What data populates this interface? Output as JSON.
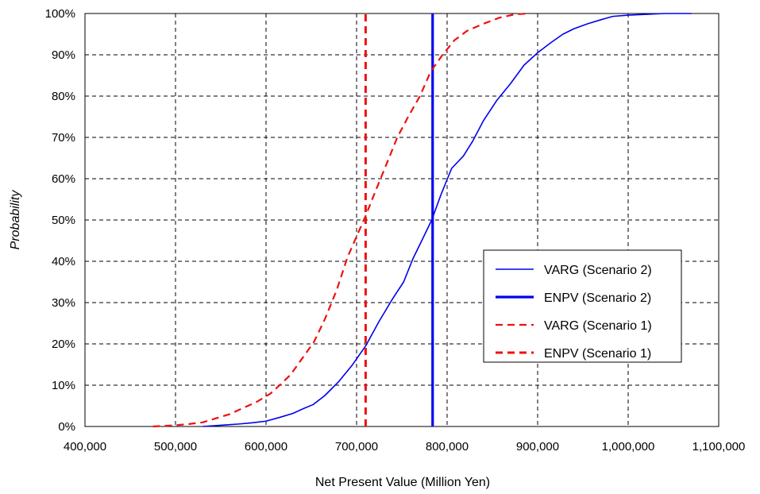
{
  "chart_data": {
    "type": "line",
    "title": "",
    "xlabel": "Net Present Value (Million Yen)",
    "ylabel": "Probability",
    "xlim": [
      400000,
      1100000
    ],
    "ylim": [
      0,
      1
    ],
    "grid": true,
    "legend_position": "right",
    "x_ticks": [
      "400,000",
      "500,000",
      "600,000",
      "700,000",
      "800,000",
      "900,000",
      "1,000,000",
      "1,100,000"
    ],
    "y_ticks": [
      "0%",
      "10%",
      "20%",
      "30%",
      "40%",
      "50%",
      "60%",
      "70%",
      "80%",
      "90%",
      "100%"
    ],
    "colors": {
      "scenario2": "#0000ee",
      "scenario1": "#ee1111"
    },
    "series": [
      {
        "name": "VARG (Scenario 2)",
        "style": "solid-thin",
        "color": "#0000ee",
        "x": [
          530000,
          550000,
          570000,
          585000,
          600000,
          615000,
          630000,
          642000,
          652000,
          665000,
          680000,
          695000,
          710000,
          725000,
          740000,
          752000,
          762000,
          772000,
          783000,
          793000,
          805000,
          818000,
          828000,
          840000,
          855000,
          870000,
          885000,
          900000,
          915000,
          928000,
          940000,
          955000,
          970000,
          983000,
          1000000,
          1020000,
          1040000,
          1070000
        ],
        "y": [
          0.0,
          0.003,
          0.006,
          0.009,
          0.013,
          0.022,
          0.032,
          0.044,
          0.053,
          0.075,
          0.108,
          0.148,
          0.195,
          0.255,
          0.31,
          0.35,
          0.405,
          0.45,
          0.5,
          0.56,
          0.625,
          0.655,
          0.69,
          0.74,
          0.79,
          0.83,
          0.875,
          0.905,
          0.93,
          0.95,
          0.963,
          0.975,
          0.985,
          0.993,
          0.996,
          0.998,
          1.0,
          1.0
        ]
      },
      {
        "name": "ENPV (Scenario 2)",
        "style": "solid-thick",
        "color": "#0000ee",
        "x": [
          784000,
          784000
        ],
        "y": [
          0,
          1
        ]
      },
      {
        "name": "VARG (Scenario 1)",
        "style": "dashed",
        "color": "#ee1111",
        "x": [
          475000,
          500000,
          515000,
          530000,
          545000,
          560000,
          575000,
          590000,
          605000,
          615000,
          627000,
          640000,
          653000,
          665000,
          678000,
          690000,
          700000,
          710000,
          720000,
          733000,
          745000,
          757000,
          770000,
          782000,
          795000,
          808000,
          822000,
          840000,
          858000,
          875000,
          890000
        ],
        "y": [
          0.0,
          0.003,
          0.006,
          0.01,
          0.02,
          0.03,
          0.045,
          0.06,
          0.08,
          0.1,
          0.125,
          0.165,
          0.205,
          0.26,
          0.33,
          0.41,
          0.46,
          0.51,
          0.565,
          0.635,
          0.7,
          0.75,
          0.8,
          0.86,
          0.9,
          0.935,
          0.958,
          0.975,
          0.99,
          0.998,
          1.0
        ]
      },
      {
        "name": "ENPV (Scenario 1)",
        "style": "dashed-thick",
        "color": "#ee1111",
        "x": [
          710000,
          710000
        ],
        "y": [
          0,
          1
        ]
      }
    ]
  }
}
